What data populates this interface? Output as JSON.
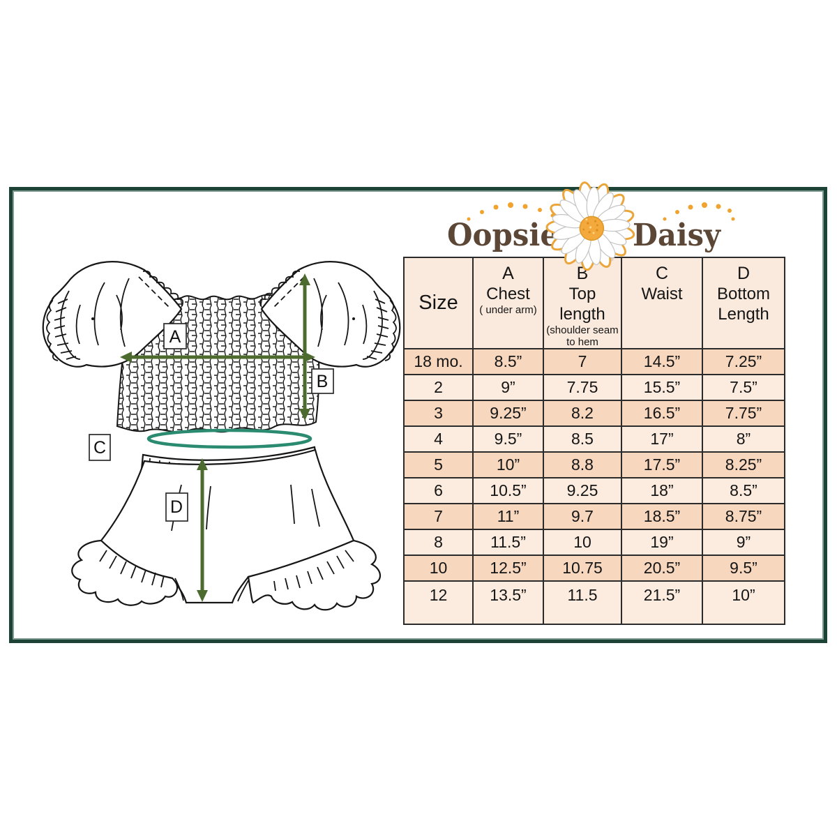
{
  "frame": {
    "border_color": "#1d4236",
    "inner_line_color": "#7f9e91"
  },
  "logo": {
    "word1": "Oopsie",
    "word2": "Daisy",
    "text_color": "#5c4737",
    "dot_color": "#f0a32e",
    "daisy_center_color": "#f3a93c",
    "petal_outline_color": "#eba63b"
  },
  "diagram": {
    "labels": {
      "a": "A",
      "b": "B",
      "c": "C",
      "d": "D"
    },
    "arrow_color": "#4d6b2e",
    "waist_ellipse_color": "#2b8b70",
    "line_color": "#161616"
  },
  "table": {
    "header_bg": "#faeadd",
    "row_bg_dark": "#f8d7bf",
    "row_bg_light": "#fcecdf",
    "grid_color": "#2b2b2b",
    "columns": [
      {
        "letter": "",
        "label": "Size",
        "note": ""
      },
      {
        "letter": "A",
        "label": "Chest",
        "note": "( under arm)"
      },
      {
        "letter": "B",
        "label": "Top length",
        "note": "(shoulder seam to hem"
      },
      {
        "letter": "C",
        "label": "Waist",
        "note": ""
      },
      {
        "letter": "D",
        "label": "Bottom Length",
        "note": ""
      }
    ],
    "rows": [
      [
        "18 mo.",
        "8.5”",
        "7",
        "14.5”",
        "7.25”"
      ],
      [
        "2",
        "9”",
        "7.75",
        "15.5”",
        "7.5”"
      ],
      [
        "3",
        "9.25”",
        "8.2",
        "16.5”",
        "7.75”"
      ],
      [
        "4",
        "9.5”",
        "8.5",
        "17”",
        "8”"
      ],
      [
        "5",
        "10”",
        "8.8",
        "17.5”",
        "8.25”"
      ],
      [
        "6",
        "10.5”",
        "9.25",
        "18”",
        "8.5”"
      ],
      [
        "7",
        "11”",
        "9.7",
        "18.5”",
        "8.75”"
      ],
      [
        "8",
        "11.5”",
        "10",
        "19”",
        "9”"
      ],
      [
        "10",
        "12.5”",
        "10.75",
        "20.5”",
        "9.5”"
      ],
      [
        "12",
        "13.5”",
        "11.5",
        "21.5”",
        "10”"
      ]
    ]
  },
  "chart_data": {
    "type": "table",
    "title": "Oopsie Daisy size chart",
    "columns": [
      "Size",
      "A Chest ( under arm)",
      "B Top length (shoulder seam to hem",
      "C Waist",
      "D Bottom Length"
    ],
    "rows": [
      [
        "18 mo.",
        "8.5”",
        "7",
        "14.5”",
        "7.25”"
      ],
      [
        "2",
        "9”",
        "7.75",
        "15.5”",
        "7.5”"
      ],
      [
        "3",
        "9.25”",
        "8.2",
        "16.5”",
        "7.75”"
      ],
      [
        "4",
        "9.5”",
        "8.5",
        "17”",
        "8”"
      ],
      [
        "5",
        "10”",
        "8.8",
        "17.5”",
        "8.25”"
      ],
      [
        "6",
        "10.5”",
        "9.25",
        "18”",
        "8.5”"
      ],
      [
        "7",
        "11”",
        "9.7",
        "18.5”",
        "8.75”"
      ],
      [
        "8",
        "11.5”",
        "10",
        "19”",
        "9”"
      ],
      [
        "10",
        "12.5”",
        "10.75",
        "20.5”",
        "9.5”"
      ],
      [
        "12",
        "13.5”",
        "11.5",
        "21.5”",
        "10”"
      ]
    ]
  }
}
